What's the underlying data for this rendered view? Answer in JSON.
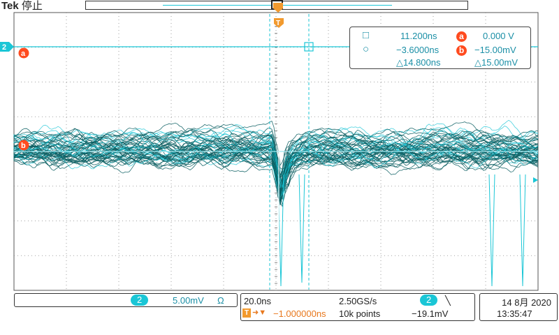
{
  "header": {
    "brand": "Tek",
    "status": "停止"
  },
  "channel": {
    "number": "2",
    "scale": "5.00mV",
    "coupling_symbol": "Ω"
  },
  "markers": {
    "a_label": "a",
    "b_label": "b",
    "trigger_label": "T"
  },
  "cursor_readout": {
    "square_time": "11.200ns",
    "circle_time": "−3.6000ns",
    "delta_time": "△14.800ns",
    "a_value": "0.000 V",
    "b_value": "−15.00mV",
    "delta_value": "△15.00mV"
  },
  "horizontal": {
    "time_per_div": "20.0ns",
    "sample_rate": "2.50GS/s",
    "trigger_position": "−1.000000ns",
    "record_length": "10k points"
  },
  "trigger": {
    "source": "2",
    "slope_symbol": "╲",
    "level": "−19.1mV"
  },
  "datetime": {
    "date": "14 8月 2020",
    "time": "13:35:47"
  },
  "colors": {
    "trace_dark": "#0c5f63",
    "trace_bright": "#1ac6d6",
    "cursor": "#1ac6d6",
    "marker": "#ff4b1f",
    "trigger": "#e8781d"
  }
}
